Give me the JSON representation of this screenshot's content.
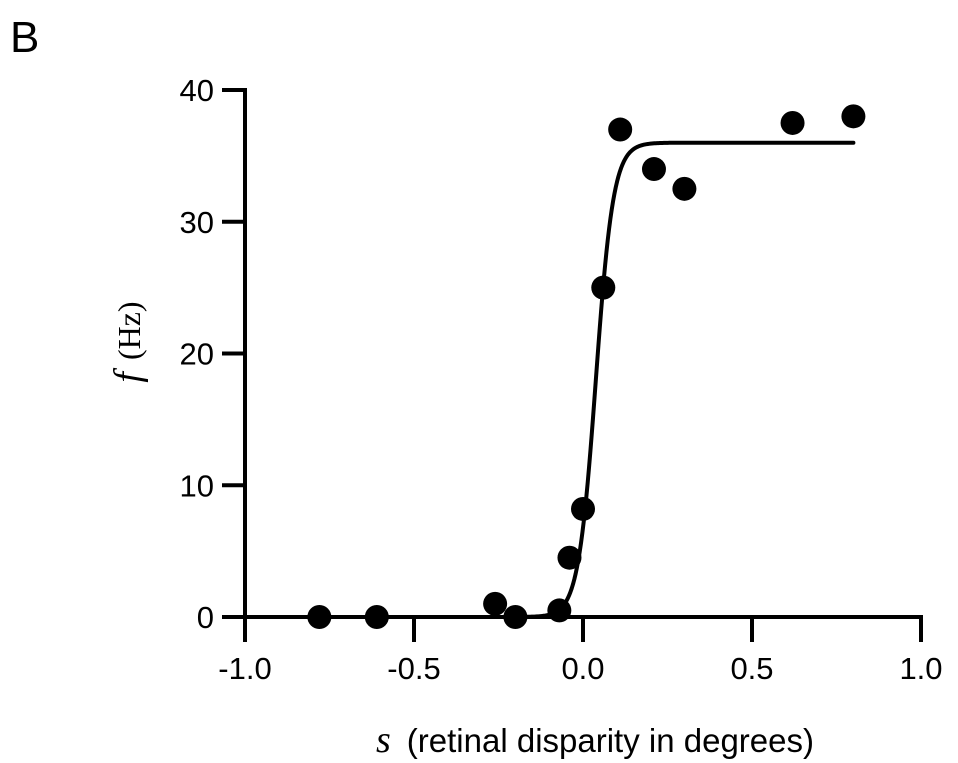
{
  "panel_label": "B",
  "chart_data": {
    "type": "scatter",
    "title": "",
    "xlabel": {
      "symbol": "s",
      "text": "(retinal disparity in degrees)"
    },
    "ylabel": {
      "symbol": "f",
      "text": "(Hz)"
    },
    "xlim": [
      -1.0,
      1.0
    ],
    "ylim": [
      0,
      40
    ],
    "xticks": [
      -1.0,
      -0.5,
      0.0,
      0.5,
      1.0
    ],
    "xtick_labels": [
      "-1.0",
      "-0.5",
      "0.0",
      "0.5",
      "1.0"
    ],
    "yticks": [
      0,
      10,
      20,
      30,
      40
    ],
    "ytick_labels": [
      "0",
      "10",
      "20",
      "30",
      "40"
    ],
    "grid": false,
    "series": [
      {
        "kind": "points",
        "x": [
          -0.78,
          -0.61,
          -0.26,
          -0.2,
          -0.07,
          -0.04,
          0.0,
          0.06,
          0.11,
          0.21,
          0.3,
          0.62,
          0.8
        ],
        "y": [
          0,
          0,
          1.0,
          0,
          0.5,
          4.5,
          8.2,
          25,
          37,
          34,
          32.5,
          37.5,
          38
        ]
      },
      {
        "kind": "fitted_curve",
        "function": "logistic",
        "x_range": [
          -0.78,
          0.8
        ],
        "max": 36,
        "midpoint": 0.038,
        "slope": 0.026
      }
    ]
  }
}
